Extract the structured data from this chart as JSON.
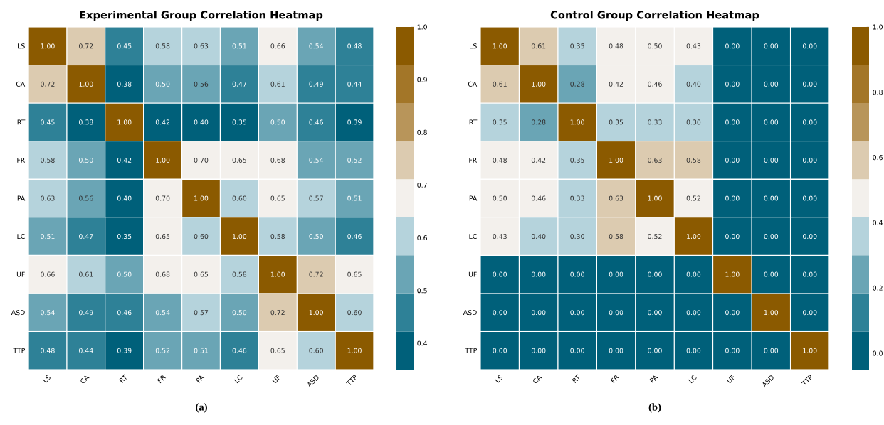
{
  "chart_data": [
    {
      "type": "heatmap",
      "title": "Experimental Group Correlation Heatmap",
      "annotations": [
        "(a)"
      ],
      "categories": [
        "LS",
        "CA",
        "RT",
        "FR",
        "PA",
        "LC",
        "UF",
        "ASD",
        "TTP"
      ],
      "y_categories": [
        "LS",
        "CA",
        "RT",
        "FR",
        "PA",
        "LC",
        "UF",
        "ASD",
        "TTP"
      ],
      "cells": [
        [
          1.0,
          0.72,
          0.45,
          0.58,
          0.63,
          0.51,
          0.66,
          0.54,
          0.48
        ],
        [
          0.72,
          1.0,
          0.38,
          0.5,
          0.56,
          0.47,
          0.61,
          0.49,
          0.44
        ],
        [
          0.45,
          0.38,
          1.0,
          0.42,
          0.4,
          0.35,
          0.5,
          0.46,
          0.39
        ],
        [
          0.58,
          0.5,
          0.42,
          1.0,
          0.7,
          0.65,
          0.68,
          0.54,
          0.52
        ],
        [
          0.63,
          0.56,
          0.4,
          0.7,
          1.0,
          0.6,
          0.65,
          0.57,
          0.51
        ],
        [
          0.51,
          0.47,
          0.35,
          0.65,
          0.6,
          1.0,
          0.58,
          0.5,
          0.46
        ],
        [
          0.66,
          0.61,
          0.5,
          0.68,
          0.65,
          0.58,
          1.0,
          0.72,
          0.65
        ],
        [
          0.54,
          0.49,
          0.46,
          0.54,
          0.57,
          0.5,
          0.72,
          1.0,
          0.6
        ],
        [
          0.48,
          0.44,
          0.39,
          0.52,
          0.51,
          0.46,
          0.65,
          0.6,
          1.0
        ]
      ],
      "cell_labels": [
        [
          "1.00",
          "0.72",
          "0.45",
          "0.58",
          "0.63",
          "0.51",
          "0.66",
          "0.54",
          "0.48"
        ],
        [
          "0.72",
          "1.00",
          "0.38",
          "0.50",
          "0.56",
          "0.47",
          "0.61",
          "0.49",
          "0.44"
        ],
        [
          "0.45",
          "0.38",
          "1.00",
          "0.42",
          "0.40",
          "0.35",
          "0.50",
          "0.46",
          "0.39"
        ],
        [
          "0.58",
          "0.50",
          "0.42",
          "1.00",
          "0.70",
          "0.65",
          "0.68",
          "0.54",
          "0.52"
        ],
        [
          "0.63",
          "0.56",
          "0.40",
          "0.70",
          "1.00",
          "0.60",
          "0.65",
          "0.57",
          "0.51"
        ],
        [
          "0.51",
          "0.47",
          "0.35",
          "0.65",
          "0.60",
          "1.00",
          "0.58",
          "0.50",
          "0.46"
        ],
        [
          "0.66",
          "0.61",
          "0.50",
          "0.68",
          "0.65",
          "0.58",
          "1.00",
          "0.72",
          "0.65"
        ],
        [
          "0.54",
          "0.49",
          "0.46",
          "0.54",
          "0.57",
          "0.50",
          "0.72",
          "1.00",
          "0.60"
        ],
        [
          "0.48",
          "0.44",
          "0.39",
          "0.52",
          "0.51",
          "0.46",
          "0.65",
          "0.60",
          "1.00"
        ]
      ],
      "clim": [
        0.35,
        1.0
      ],
      "cticks": [
        {
          "value": 0.4,
          "label": "0.4"
        },
        {
          "value": 0.5,
          "label": "0.5"
        },
        {
          "value": 0.6,
          "label": "0.6"
        },
        {
          "value": 0.7,
          "label": "0.7"
        },
        {
          "value": 0.8,
          "label": "0.8"
        },
        {
          "value": 0.9,
          "label": "0.9"
        },
        {
          "value": 1.0,
          "label": "1.0"
        }
      ]
    },
    {
      "type": "heatmap",
      "title": "Control Group Correlation Heatmap",
      "annotations": [
        "(b)"
      ],
      "categories": [
        "LS",
        "CA",
        "RT",
        "FR",
        "PA",
        "LC",
        "UF",
        "ASD",
        "TTP"
      ],
      "y_categories": [
        "LS",
        "CA",
        "RT",
        "FR",
        "PA",
        "LC",
        "UF",
        "ASD",
        "TTP"
      ],
      "cells": [
        [
          1.0,
          0.61,
          0.35,
          0.48,
          0.5,
          0.43,
          0.0,
          0.0,
          0.0
        ],
        [
          0.61,
          1.0,
          0.28,
          0.42,
          0.46,
          0.4,
          0.0,
          0.0,
          0.0
        ],
        [
          0.35,
          0.28,
          1.0,
          0.35,
          0.33,
          0.3,
          0.0,
          0.0,
          0.0
        ],
        [
          0.48,
          0.42,
          0.35,
          1.0,
          0.63,
          0.58,
          0.0,
          0.0,
          0.0
        ],
        [
          0.5,
          0.46,
          0.33,
          0.63,
          1.0,
          0.52,
          0.0,
          0.0,
          0.0
        ],
        [
          0.43,
          0.4,
          0.3,
          0.58,
          0.52,
          1.0,
          0.0,
          0.0,
          0.0
        ],
        [
          0.0,
          0.0,
          0.0,
          0.0,
          0.0,
          0.0,
          1.0,
          0.0,
          0.0
        ],
        [
          0.0,
          0.0,
          0.0,
          0.0,
          0.0,
          0.0,
          0.0,
          1.0,
          0.0
        ],
        [
          0.0,
          0.0,
          0.0,
          0.0,
          0.0,
          0.0,
          0.0,
          0.0,
          1.0
        ]
      ],
      "cell_labels": [
        [
          "1.00",
          "0.61",
          "0.35",
          "0.48",
          "0.50",
          "0.43",
          "0.00",
          "0.00",
          "0.00"
        ],
        [
          "0.61",
          "1.00",
          "0.28",
          "0.42",
          "0.46",
          "0.40",
          "0.00",
          "0.00",
          "0.00"
        ],
        [
          "0.35",
          "0.28",
          "1.00",
          "0.35",
          "0.33",
          "0.30",
          "0.00",
          "0.00",
          "0.00"
        ],
        [
          "0.48",
          "0.42",
          "0.35",
          "1.00",
          "0.63",
          "0.58",
          "0.00",
          "0.00",
          "0.00"
        ],
        [
          "0.50",
          "0.46",
          "0.33",
          "0.63",
          "1.00",
          "0.52",
          "0.00",
          "0.00",
          "0.00"
        ],
        [
          "0.43",
          "0.40",
          "0.30",
          "0.58",
          "0.52",
          "1.00",
          "0.00",
          "0.00",
          "0.00"
        ],
        [
          "0.00",
          "0.00",
          "0.00",
          "0.00",
          "0.00",
          "0.00",
          "1.00",
          "0.00",
          "0.00"
        ],
        [
          "0.00",
          "0.00",
          "0.00",
          "0.00",
          "0.00",
          "0.00",
          "0.00",
          "1.00",
          "0.00"
        ],
        [
          "0.00",
          "0.00",
          "0.00",
          "0.00",
          "0.00",
          "0.00",
          "0.00",
          "0.00",
          "1.00"
        ]
      ],
      "clim": [
        -0.05,
        1.0
      ],
      "cticks": [
        {
          "value": 0.0,
          "label": "0.0"
        },
        {
          "value": 0.2,
          "label": "0.2"
        },
        {
          "value": 0.4,
          "label": "0.4"
        },
        {
          "value": 0.6,
          "label": "0.6"
        },
        {
          "value": 0.8,
          "label": "0.8"
        },
        {
          "value": 1.0,
          "label": "1.0"
        }
      ]
    }
  ]
}
